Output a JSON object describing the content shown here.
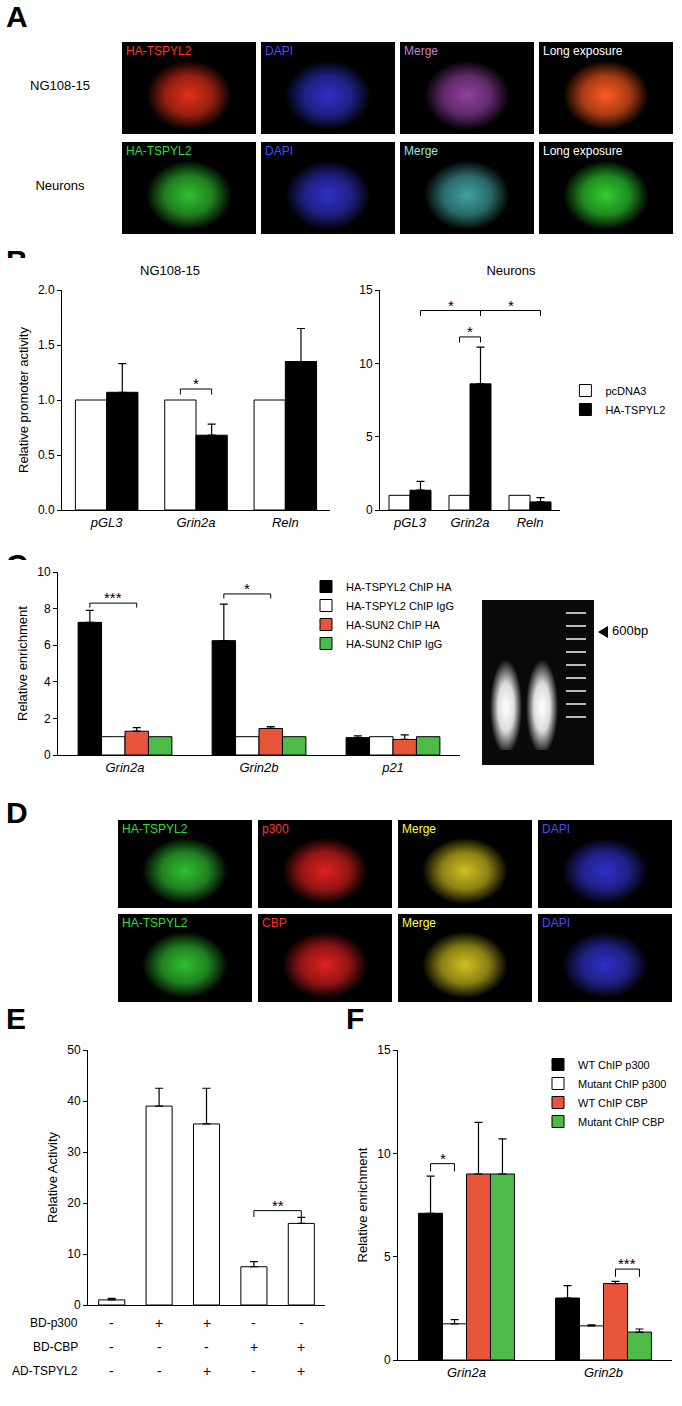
{
  "panel_letters": [
    "A",
    "B",
    "C",
    "D",
    "E",
    "F"
  ],
  "panel_A": {
    "rows": [
      {
        "label": "NG108-15",
        "images": [
          {
            "label": "HA-TSPYL2",
            "color": "#ff3a1a",
            "signal": "#e03018"
          },
          {
            "label": "DAPI",
            "color": "#4a4aff",
            "signal": "#3030c8"
          },
          {
            "label": "Merge",
            "color": "#c080d0",
            "signal": "#9040a0"
          },
          {
            "label": "Long exposure",
            "color": "#ffffff",
            "signal": "#ff5a20"
          }
        ]
      },
      {
        "label": "Neurons",
        "images": [
          {
            "label": "HA-TSPYL2",
            "color": "#33dd33",
            "signal": "#30c030"
          },
          {
            "label": "DAPI",
            "color": "#4a4aff",
            "signal": "#3030c8"
          },
          {
            "label": "Merge",
            "color": "#a0e0e0",
            "signal": "#40a0a0"
          },
          {
            "label": "Long exposure",
            "color": "#ffffff",
            "signal": "#30d030"
          }
        ]
      }
    ]
  },
  "panel_C_gel": {
    "marker_label": "600bp"
  },
  "panel_D": {
    "rows": [
      {
        "images": [
          {
            "label": "HA-TSPYL2",
            "color": "#33dd33",
            "signal": "#30c030"
          },
          {
            "label": "p300",
            "color": "#ff3030",
            "signal": "#e02020"
          },
          {
            "label": "Merge",
            "color": "#ffff40",
            "signal": "#d0c020"
          },
          {
            "label": "DAPI",
            "color": "#4a4aff",
            "signal": "#3030c8"
          }
        ]
      },
      {
        "images": [
          {
            "label": "HA-TSPYL2",
            "color": "#33dd33",
            "signal": "#30c030"
          },
          {
            "label": "CBP",
            "color": "#ff3030",
            "signal": "#e02020"
          },
          {
            "label": "Merge",
            "color": "#ffff40",
            "signal": "#d0c020"
          },
          {
            "label": "DAPI",
            "color": "#4a4aff",
            "signal": "#3030c8"
          }
        ]
      }
    ]
  },
  "chart_data": [
    {
      "type": "bar",
      "title": "NG108-15",
      "y_label": "Relative promoter activity",
      "categories": [
        "pGL3",
        "Grin2a",
        "Reln"
      ],
      "ylim": [
        0,
        2
      ],
      "yticks": [
        {
          "value": 0,
          "label": "0.0"
        },
        {
          "value": 0.5,
          "label": "0.5"
        },
        {
          "value": 1,
          "label": "1.0"
        },
        {
          "value": 1.5,
          "label": "1.5"
        },
        {
          "value": 2,
          "label": "2.0"
        }
      ],
      "series": [
        {
          "name": "pcDNA3",
          "color": "#ffffff",
          "values": [
            1,
            1,
            1
          ]
        },
        {
          "name": "HA-TSPYL2",
          "color": "#000000",
          "values": [
            1.07,
            0.68,
            1.35
          ],
          "errors": [
            0.26,
            0.1,
            0.3
          ]
        }
      ],
      "annotations": [
        {
          "text": "*",
          "from": {
            "category": 1,
            "series": 0
          },
          "to": {
            "category": 1,
            "series": 1
          },
          "y": 1.1
        }
      ]
    },
    {
      "type": "bar",
      "title": "Neurons",
      "categories": [
        "pGL3",
        "Grin2a",
        "Reln"
      ],
      "ylim": [
        0,
        15
      ],
      "yticks": [
        0,
        5,
        10,
        15
      ],
      "legend": "right",
      "series": [
        {
          "name": "pcDNA3",
          "color": "#ffffff",
          "values": [
            1,
            1,
            1
          ]
        },
        {
          "name": "HA-TSPYL2",
          "color": "#000000",
          "values": [
            1.35,
            8.6,
            0.55
          ],
          "errors": [
            0.6,
            2.5,
            0.3
          ]
        }
      ],
      "annotations": [
        {
          "text": "*",
          "from": {
            "category": 0,
            "series": 1
          },
          "to": {
            "category": 1,
            "series": 1
          },
          "y": 13.6
        },
        {
          "text": "*",
          "from": {
            "category": 1,
            "series": 0
          },
          "to": {
            "category": 1,
            "series": 1
          },
          "y": 11.8
        },
        {
          "text": "*",
          "from": {
            "category": 1,
            "series": 1
          },
          "to": {
            "category": 2,
            "series": 1
          },
          "y": 13.6
        }
      ]
    },
    {
      "type": "bar",
      "y_label": "Relative enrichment",
      "categories": [
        "Grin2a",
        "Grin2b",
        "p21"
      ],
      "ylim": [
        0,
        10
      ],
      "yticks": [
        0,
        2,
        4,
        6,
        8,
        10
      ],
      "legend": "top right",
      "series": [
        {
          "name": "HA-TSPYL2 ChIP HA",
          "color": "#000000",
          "values": [
            7.25,
            6.25,
            0.95
          ],
          "errors": [
            0.65,
            2.0,
            0.1
          ]
        },
        {
          "name": "HA-TSPYL2 ChIP IgG",
          "color": "#ffffff",
          "values": [
            1,
            1,
            1
          ]
        },
        {
          "name": "HA-SUN2 ChIP HA",
          "color": "#e8553a",
          "values": [
            1.3,
            1.45,
            0.85
          ],
          "errors": [
            0.2,
            0.1,
            0.25
          ]
        },
        {
          "name": "HA-SUN2 ChIP IgG",
          "color": "#4cbb47",
          "values": [
            1,
            1,
            1
          ]
        }
      ],
      "annotations": [
        {
          "text": "***",
          "from": {
            "category": 0,
            "series": 0
          },
          "to": {
            "category": 0,
            "series": 2
          },
          "y": 8.3
        },
        {
          "text": "*",
          "from": {
            "category": 1,
            "series": 0
          },
          "to": {
            "category": 1,
            "series": 2
          },
          "y": 8.8
        }
      ]
    },
    {
      "type": "bar",
      "y_label": "Relative Activity",
      "categories": [
        null,
        null,
        null,
        null,
        null
      ],
      "tick_labels": "y",
      "ylim": [
        0,
        50
      ],
      "yticks": [
        0,
        10,
        20,
        30,
        40,
        50
      ],
      "series": [
        {
          "name": "Relative Activity",
          "color": "#ffffff",
          "values": [
            1,
            39,
            35.5,
            7.5,
            16
          ],
          "errors": [
            0.3,
            3.5,
            7,
            1,
            1.2
          ]
        }
      ],
      "conditions": [
        {
          "label": "BD-p300",
          "marks": [
            "-",
            "+",
            "+",
            "-",
            "-"
          ]
        },
        {
          "label": "BD-CBP",
          "marks": [
            "-",
            "-",
            "-",
            "+",
            "+"
          ]
        },
        {
          "label": "AD-TSPYL2",
          "marks": [
            "-",
            "-",
            "+",
            "-",
            "+"
          ]
        }
      ],
      "annotations": [
        {
          "text": "**",
          "from": {
            "category": 3,
            "series": 0
          },
          "to": {
            "category": 4,
            "series": 0
          },
          "y": 18.5
        }
      ]
    },
    {
      "type": "bar",
      "y_label": "Relative enrichment",
      "categories": [
        "Grin2a",
        "Grin2b"
      ],
      "ylim": [
        0,
        15
      ],
      "yticks": [
        0,
        5,
        10,
        15
      ],
      "legend": "top right",
      "series": [
        {
          "name": "WT ChIP p300",
          "color": "#000000",
          "values": [
            7.1,
            3.0
          ],
          "errors": [
            1.8,
            0.6
          ]
        },
        {
          "name": "Mutant ChIP p300",
          "color": "#ffffff",
          "values": [
            1.75,
            1.65
          ],
          "errors": [
            0.2,
            0.05
          ]
        },
        {
          "name": "WT ChIP CBP",
          "color": "#e8553a",
          "values": [
            9.0,
            3.7
          ],
          "errors": [
            2.5,
            0.1
          ]
        },
        {
          "name": "Mutant ChIP CBP",
          "color": "#4cbb47",
          "values": [
            9.0,
            1.35
          ],
          "errors": [
            1.7,
            0.15
          ]
        }
      ],
      "annotations": [
        {
          "text": "*",
          "from": {
            "category": 0,
            "series": 0
          },
          "to": {
            "category": 0,
            "series": 1
          },
          "y": 9.5
        },
        {
          "text": "***",
          "from": {
            "category": 1,
            "series": 2
          },
          "to": {
            "category": 1,
            "series": 3
          },
          "y": 4.4
        }
      ]
    }
  ]
}
